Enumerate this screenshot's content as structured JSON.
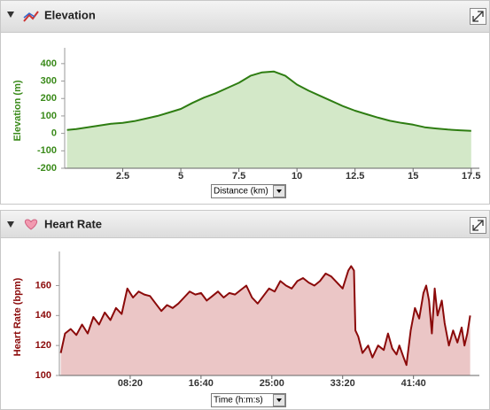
{
  "chart_data": [
    {
      "type": "area",
      "title": "Elevation",
      "x_label": "Distance (km)",
      "y_label": "Elevation (m)",
      "color": "#2e7d12",
      "fill": "#d3e8c8",
      "tick_color": "#3a8a1a",
      "x": [
        0.1,
        0.5,
        1,
        1.5,
        2,
        2.5,
        3,
        3.5,
        4,
        4.5,
        5,
        5.5,
        6,
        6.5,
        7,
        7.5,
        8,
        8.5,
        9,
        9.5,
        10,
        10.5,
        11,
        11.5,
        12,
        12.5,
        13,
        13.5,
        14,
        14.5,
        15,
        15.5,
        16,
        16.5,
        17,
        17.5
      ],
      "values": [
        20,
        25,
        35,
        45,
        55,
        60,
        70,
        85,
        100,
        120,
        140,
        175,
        205,
        230,
        260,
        290,
        330,
        350,
        355,
        330,
        280,
        245,
        215,
        185,
        155,
        130,
        110,
        90,
        72,
        60,
        50,
        35,
        28,
        22,
        18,
        15
      ],
      "xlim": [
        0,
        17.7
      ],
      "xticks": [
        2.5,
        5,
        7.5,
        10,
        12.5,
        15,
        17.5
      ],
      "ylim": [
        -200,
        450
      ],
      "yticks": [
        400,
        300,
        200,
        100,
        0,
        -100,
        -200
      ],
      "grid": false
    },
    {
      "type": "area",
      "title": "Heart Rate",
      "x_label": "Time (h:m:s)",
      "y_label": "Heart Rate (bpm)",
      "color": "#8b0a0a",
      "fill": "#ebc6c6",
      "tick_color": "#8b0a0a",
      "x": [
        10,
        40,
        80,
        120,
        160,
        200,
        240,
        280,
        320,
        360,
        400,
        440,
        480,
        520,
        560,
        600,
        640,
        680,
        720,
        760,
        800,
        840,
        880,
        920,
        960,
        1000,
        1040,
        1080,
        1120,
        1160,
        1200,
        1240,
        1280,
        1320,
        1360,
        1400,
        1440,
        1480,
        1520,
        1560,
        1600,
        1640,
        1680,
        1720,
        1760,
        1800,
        1840,
        1880,
        1920,
        1960,
        2000,
        2040,
        2060,
        2080,
        2090,
        2110,
        2140,
        2180,
        2210,
        2250,
        2290,
        2320,
        2350,
        2380,
        2400,
        2430,
        2450,
        2480,
        2510,
        2540,
        2570,
        2590,
        2610,
        2630,
        2650,
        2670,
        2700,
        2720,
        2750,
        2780,
        2810,
        2840,
        2860,
        2880,
        2900
      ],
      "values": [
        115,
        128,
        131,
        127,
        134,
        128,
        139,
        134,
        142,
        137,
        145,
        141,
        158,
        152,
        156,
        154,
        153,
        148,
        143,
        147,
        145,
        148,
        152,
        156,
        154,
        155,
        150,
        153,
        156,
        152,
        155,
        154,
        157,
        160,
        152,
        148,
        153,
        158,
        156,
        163,
        160,
        158,
        163,
        165,
        162,
        160,
        163,
        168,
        166,
        162,
        158,
        170,
        173,
        170,
        130,
        126,
        115,
        120,
        112,
        120,
        117,
        128,
        118,
        114,
        120,
        112,
        107,
        130,
        145,
        138,
        155,
        160,
        150,
        128,
        158,
        140,
        150,
        135,
        120,
        130,
        122,
        132,
        120,
        128,
        140
      ],
      "xlim": [
        0,
        2940
      ],
      "xticks": [
        {
          "value": 500,
          "label": "08:20"
        },
        {
          "value": 1000,
          "label": "16:40"
        },
        {
          "value": 1500,
          "label": "25:00"
        },
        {
          "value": 2000,
          "label": "33:20"
        },
        {
          "value": 2500,
          "label": "41:40"
        }
      ],
      "ylim": [
        100,
        178
      ],
      "yticks": [
        160,
        140,
        120,
        100
      ],
      "grid": false
    }
  ]
}
